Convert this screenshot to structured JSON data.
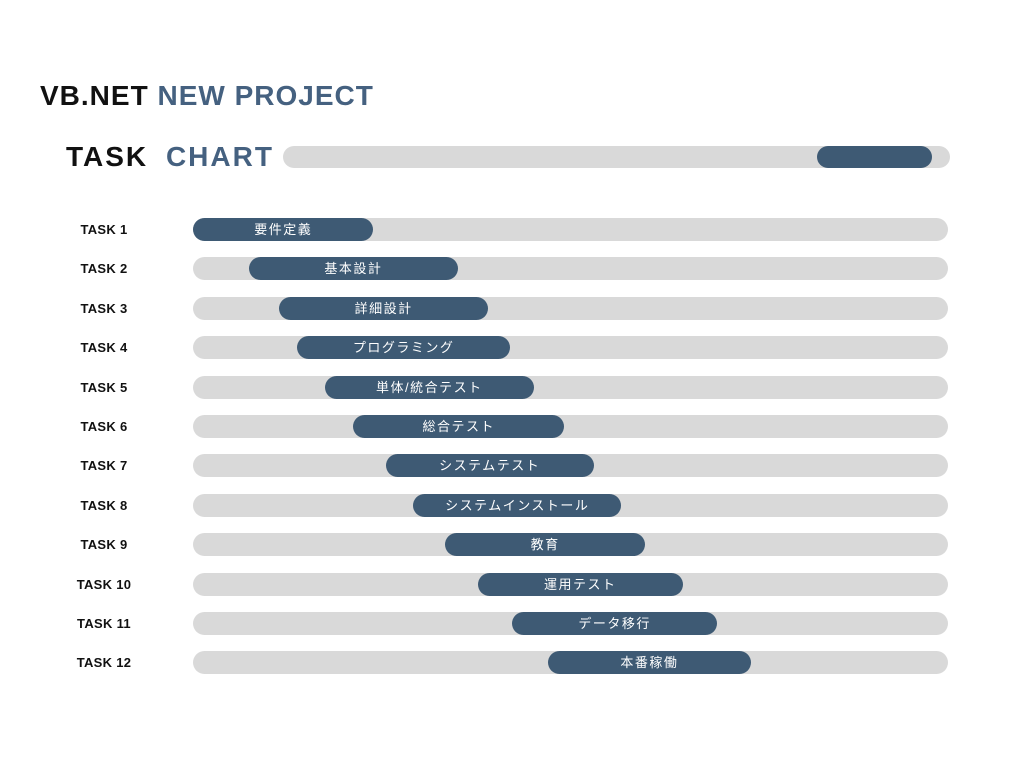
{
  "title": {
    "black": "VB.NET",
    "accent": "NEW PROJECT"
  },
  "subtitle": {
    "black": "TASK",
    "accent": "CHART"
  },
  "colors": {
    "accent": "#3e5a74",
    "title_accent": "#456180",
    "track": "#d9d9d9",
    "ink": "#111111",
    "bar_text": "#ffffff",
    "background": "#ffffff"
  },
  "header_bar": {
    "left_pct": 80.1,
    "width_pct": 17.2
  },
  "chart_data": {
    "type": "bar",
    "variant": "gantt-horizontal",
    "title": "TASK CHART",
    "categories": [
      "TASK 1",
      "TASK 2",
      "TASK 3",
      "TASK 4",
      "TASK 5",
      "TASK 6",
      "TASK 7",
      "TASK 8",
      "TASK 9",
      "TASK 10",
      "TASK 11",
      "TASK 12"
    ],
    "bar_labels": [
      "要件定義",
      "基本設計",
      "詳細設計",
      "プログラミング",
      "単体/統合テスト",
      "総合テスト",
      "システムテスト",
      "システムインストール",
      "教育",
      "運用テスト",
      "データ移行",
      "本番稼働"
    ],
    "start_pct": [
      0.0,
      7.4,
      11.4,
      13.8,
      17.5,
      21.2,
      25.5,
      29.2,
      33.4,
      37.7,
      42.3,
      47.0
    ],
    "width_pct": [
      23.9,
      27.7,
      27.7,
      28.2,
      27.6,
      28.0,
      27.6,
      27.5,
      26.5,
      27.2,
      27.1,
      26.9
    ],
    "xlim_pct": [
      0,
      100
    ],
    "grid": false,
    "legend": false
  },
  "tasks": [
    {
      "label": "TASK 1",
      "bar_label": "要件定義",
      "left_pct": 0.0,
      "width_pct": 23.9
    },
    {
      "label": "TASK 2",
      "bar_label": "基本設計",
      "left_pct": 7.4,
      "width_pct": 27.7
    },
    {
      "label": "TASK 3",
      "bar_label": "詳細設計",
      "left_pct": 11.4,
      "width_pct": 27.7
    },
    {
      "label": "TASK 4",
      "bar_label": "プログラミング",
      "left_pct": 13.8,
      "width_pct": 28.2
    },
    {
      "label": "TASK 5",
      "bar_label": "単体/統合テスト",
      "left_pct": 17.5,
      "width_pct": 27.6
    },
    {
      "label": "TASK 6",
      "bar_label": "総合テスト",
      "left_pct": 21.2,
      "width_pct": 28.0
    },
    {
      "label": "TASK 7",
      "bar_label": "システムテスト",
      "left_pct": 25.5,
      "width_pct": 27.6
    },
    {
      "label": "TASK 8",
      "bar_label": "システムインストール",
      "left_pct": 29.2,
      "width_pct": 27.5
    },
    {
      "label": "TASK 9",
      "bar_label": "教育",
      "left_pct": 33.4,
      "width_pct": 26.5
    },
    {
      "label": "TASK 10",
      "bar_label": "運用テスト",
      "left_pct": 37.7,
      "width_pct": 27.2
    },
    {
      "label": "TASK 11",
      "bar_label": "データ移行",
      "left_pct": 42.3,
      "width_pct": 27.1
    },
    {
      "label": "TASK 12",
      "bar_label": "本番稼働",
      "left_pct": 47.0,
      "width_pct": 26.9
    }
  ]
}
